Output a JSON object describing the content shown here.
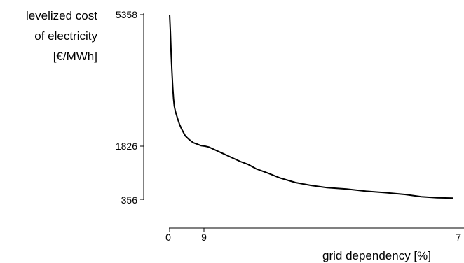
{
  "chart_data": {
    "type": "line",
    "title": "",
    "ylabel_lines": [
      "levelized cost",
      "of electricity",
      "[€/MWh]"
    ],
    "xlabel": "grid dependency [%]",
    "y_ticks": [
      "5358",
      "1826",
      "356"
    ],
    "x_ticks": [
      "0",
      "9",
      "7"
    ],
    "xlim": [
      0,
      72
    ],
    "ylim": [
      356,
      5358
    ],
    "grid": false,
    "series": [
      {
        "x": [
          0,
          0.2,
          0.4,
          0.6,
          0.8,
          1.0,
          1.2,
          1.5,
          2.0,
          2.5,
          3.0,
          3.5,
          4.0,
          4.5,
          5.0,
          5.5,
          6.0,
          7.0,
          8.0,
          9.0,
          10.0,
          12.0,
          14.0,
          16.0,
          18.0,
          20.0,
          22.0,
          25.0,
          28.0,
          32.0,
          36.0,
          40.0,
          45.0,
          50.0,
          55.0,
          60.0,
          64.0,
          68.0,
          72.0
        ],
        "y": [
          5358,
          4900,
          4300,
          3800,
          3400,
          3100,
          2900,
          2750,
          2580,
          2420,
          2300,
          2200,
          2100,
          2050,
          2000,
          1960,
          1920,
          1880,
          1840,
          1826,
          1800,
          1700,
          1600,
          1500,
          1400,
          1320,
          1200,
          1080,
          950,
          820,
          740,
          680,
          640,
          580,
          540,
          490,
          430,
          400,
          390
        ]
      }
    ]
  }
}
